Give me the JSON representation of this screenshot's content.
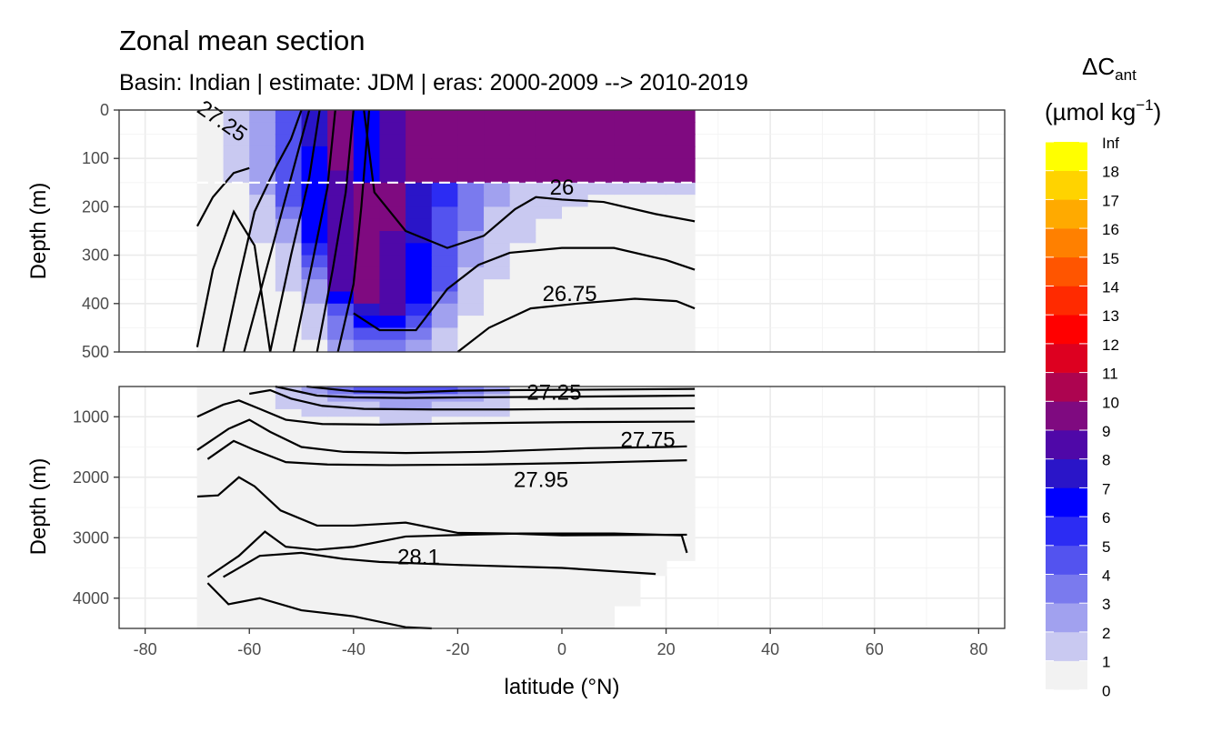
{
  "chart_data": {
    "type": "heatmap",
    "title": "Zonal mean section",
    "subtitle": "Basin: Indian | estimate: JDM  | eras: 2000-2009 --> 2010-2019",
    "xlabel": "latitude (°N)",
    "ylabel": "Depth (m)",
    "xlim": [
      -85,
      85
    ],
    "x_ticks": [
      -80,
      -60,
      -40,
      -20,
      0,
      20,
      40,
      60,
      80
    ],
    "data_extent_lat": [
      -70,
      25.5
    ],
    "panels": [
      {
        "name": "upper",
        "ylim": [
          0,
          500
        ],
        "y_ticks": [
          0,
          100,
          200,
          300,
          400,
          500
        ]
      },
      {
        "name": "lower",
        "ylim": [
          500,
          4500
        ],
        "y_ticks": [
          1000,
          2000,
          3000,
          4000
        ]
      }
    ],
    "reference_line_depth": 150,
    "legend": {
      "title_main": "ΔC",
      "title_sub": "ant",
      "unit_main": "(µmol kg",
      "unit_sup": "−1",
      "unit_close": ")",
      "breaks": [
        "0",
        "1",
        "2",
        "3",
        "4",
        "5",
        "6",
        "7",
        "8",
        "9",
        "10",
        "11",
        "12",
        "13",
        "14",
        "15",
        "16",
        "17",
        "18",
        "Inf"
      ],
      "colors": [
        "#f2f2f2",
        "#c9c9f1",
        "#a1a1ef",
        "#7a7aee",
        "#5353ef",
        "#2c2cf3",
        "#0000ff",
        "#2a15c8",
        "#4f08a8",
        "#7f0a80",
        "#ad0450",
        "#dd0020",
        "#ff0000",
        "#ff2a00",
        "#ff5500",
        "#ff8000",
        "#ffaa00",
        "#ffd300",
        "#ffff00"
      ]
    },
    "isopycnal_labels": [
      {
        "text": "27.25",
        "lat": -66,
        "depth": 35,
        "panel": "upper",
        "rotate": true
      },
      {
        "text": "26",
        "lat": 0,
        "depth": 175,
        "panel": "upper"
      },
      {
        "text": "26.75",
        "lat": 1.5,
        "depth": 395,
        "panel": "upper"
      },
      {
        "text": "27.25",
        "lat": -1.5,
        "depth": 720,
        "panel": "lower"
      },
      {
        "text": "27.75",
        "lat": 16.5,
        "depth": 1500,
        "panel": "lower"
      },
      {
        "text": "27.95",
        "lat": -4,
        "depth": 2165,
        "panel": "lower"
      },
      {
        "text": "28.1",
        "lat": -27.5,
        "depth": 3440,
        "panel": "lower"
      }
    ]
  }
}
